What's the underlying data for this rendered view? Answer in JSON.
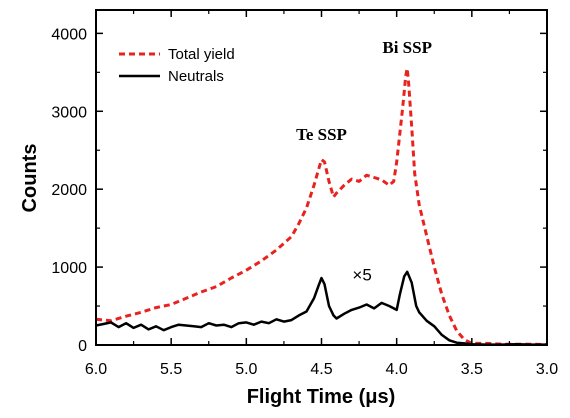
{
  "chart_data": {
    "type": "line",
    "xlabel": "Flight Time (μs)",
    "ylabel": "Counts",
    "xlim": [
      6.0,
      3.0
    ],
    "ylim": [
      0,
      4300
    ],
    "x_reversed": true,
    "x_ticks": [
      "6.0",
      "5.5",
      "5.0",
      "4.5",
      "4.0",
      "3.5",
      "3.0"
    ],
    "y_ticks": [
      "0",
      "1000",
      "2000",
      "3000",
      "4000"
    ],
    "grid": false,
    "legend_position": "top-left",
    "series": [
      {
        "name": "Total yield",
        "color": "#e8231f",
        "style": "dashed",
        "x": [
          6.0,
          5.9,
          5.8,
          5.7,
          5.6,
          5.5,
          5.4,
          5.3,
          5.2,
          5.1,
          5.0,
          4.9,
          4.8,
          4.7,
          4.65,
          4.6,
          4.55,
          4.52,
          4.5,
          4.48,
          4.45,
          4.42,
          4.4,
          4.35,
          4.3,
          4.25,
          4.2,
          4.15,
          4.1,
          4.05,
          4.02,
          4.0,
          3.98,
          3.96,
          3.94,
          3.93,
          3.92,
          3.9,
          3.88,
          3.85,
          3.8,
          3.75,
          3.7,
          3.65,
          3.6,
          3.55,
          3.5,
          3.4,
          3.3,
          3.2,
          3.1,
          3.0
        ],
        "y": [
          330,
          310,
          370,
          420,
          480,
          520,
          600,
          680,
          750,
          860,
          960,
          1080,
          1220,
          1390,
          1560,
          1760,
          2050,
          2250,
          2380,
          2350,
          2100,
          1900,
          1950,
          2050,
          2130,
          2100,
          2180,
          2150,
          2120,
          2050,
          2100,
          2350,
          2700,
          3050,
          3450,
          3550,
          3350,
          2800,
          2200,
          1800,
          1400,
          1000,
          650,
          380,
          180,
          70,
          20,
          20,
          10,
          10,
          10,
          5
        ]
      },
      {
        "name": "Neutrals",
        "color": "#000000",
        "style": "solid",
        "x": [
          6.0,
          5.95,
          5.9,
          5.85,
          5.8,
          5.75,
          5.7,
          5.65,
          5.6,
          5.55,
          5.5,
          5.45,
          5.4,
          5.35,
          5.3,
          5.25,
          5.2,
          5.15,
          5.1,
          5.05,
          5.0,
          4.95,
          4.9,
          4.85,
          4.8,
          4.75,
          4.7,
          4.65,
          4.6,
          4.55,
          4.52,
          4.5,
          4.48,
          4.45,
          4.42,
          4.4,
          4.35,
          4.3,
          4.25,
          4.2,
          4.15,
          4.1,
          4.05,
          4.0,
          3.98,
          3.95,
          3.93,
          3.9,
          3.87,
          3.85,
          3.8,
          3.75,
          3.7,
          3.65,
          3.6,
          3.55,
          3.5,
          3.4,
          3.3,
          3.2,
          3.1,
          3.0
        ],
        "y": [
          250,
          270,
          290,
          230,
          280,
          220,
          260,
          200,
          240,
          190,
          230,
          260,
          250,
          240,
          230,
          280,
          250,
          260,
          230,
          280,
          290,
          260,
          300,
          280,
          330,
          300,
          320,
          380,
          430,
          600,
          760,
          860,
          780,
          500,
          380,
          340,
          400,
          450,
          480,
          520,
          470,
          540,
          500,
          450,
          640,
          880,
          940,
          800,
          500,
          420,
          310,
          240,
          130,
          60,
          30,
          20,
          10,
          5,
          5,
          10,
          5,
          5
        ]
      }
    ],
    "annotations": [
      {
        "text": "Te SSP",
        "x": 4.5,
        "y": 2630
      },
      {
        "text": "Bi SSP",
        "x": 3.93,
        "y": 3750
      },
      {
        "text": "×5",
        "x": 4.23,
        "y": 830
      }
    ]
  }
}
